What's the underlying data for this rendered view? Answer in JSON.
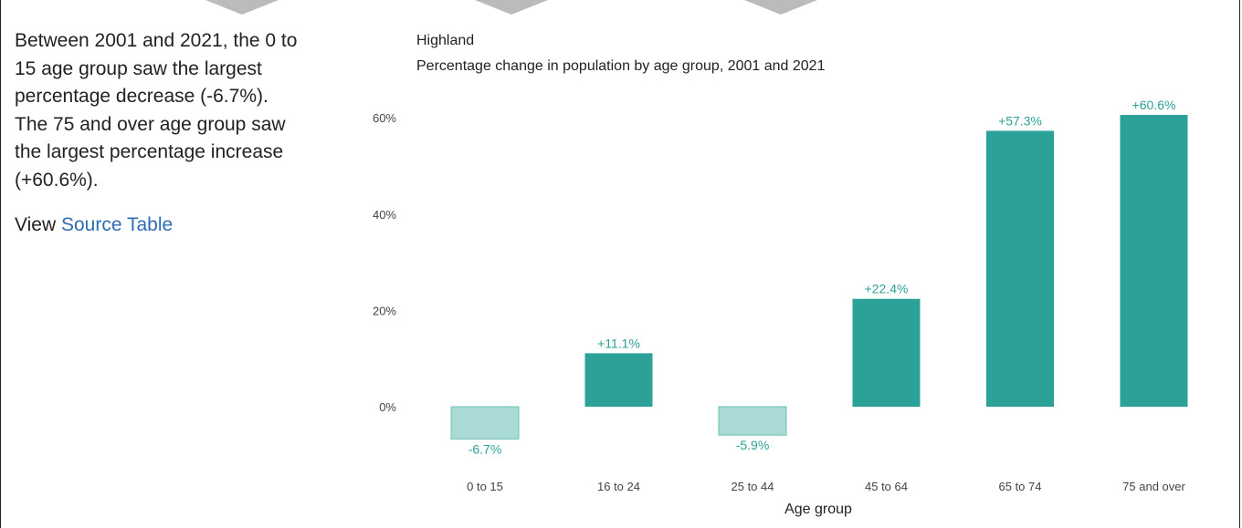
{
  "summary": {
    "text": "Between 2001 and 2021, the 0 to 15 age group saw the largest percentage decrease (-6.7%). The 75 and over age group saw the largest percentage increase (+60.6%).",
    "view_prefix": "View",
    "link_label": "Source Table"
  },
  "colors": {
    "positive": "#2ca197",
    "negative": "#a9dad5",
    "negative_border": "#6cc0b7",
    "label": "#2ca197",
    "axis_text": "#444444"
  },
  "chart_data": {
    "type": "bar",
    "title": "Highland",
    "subtitle": "Percentage change in population by age group, 2001 and 2021",
    "xlabel": "Age group",
    "ylabel": "",
    "categories": [
      "0 to 15",
      "16 to 24",
      "25 to 44",
      "45 to 64",
      "65 to 74",
      "75 and over"
    ],
    "values": [
      -6.7,
      11.1,
      -5.9,
      22.4,
      57.3,
      60.6
    ],
    "data_labels": [
      "-6.7%",
      "+11.1%",
      "-5.9%",
      "+22.4%",
      "+57.3%",
      "+60.6%"
    ],
    "yticks": [
      0,
      20,
      40,
      60
    ],
    "ytick_labels": [
      "0%",
      "20%",
      "40%",
      "60%"
    ],
    "grid": false,
    "legend": "none"
  }
}
